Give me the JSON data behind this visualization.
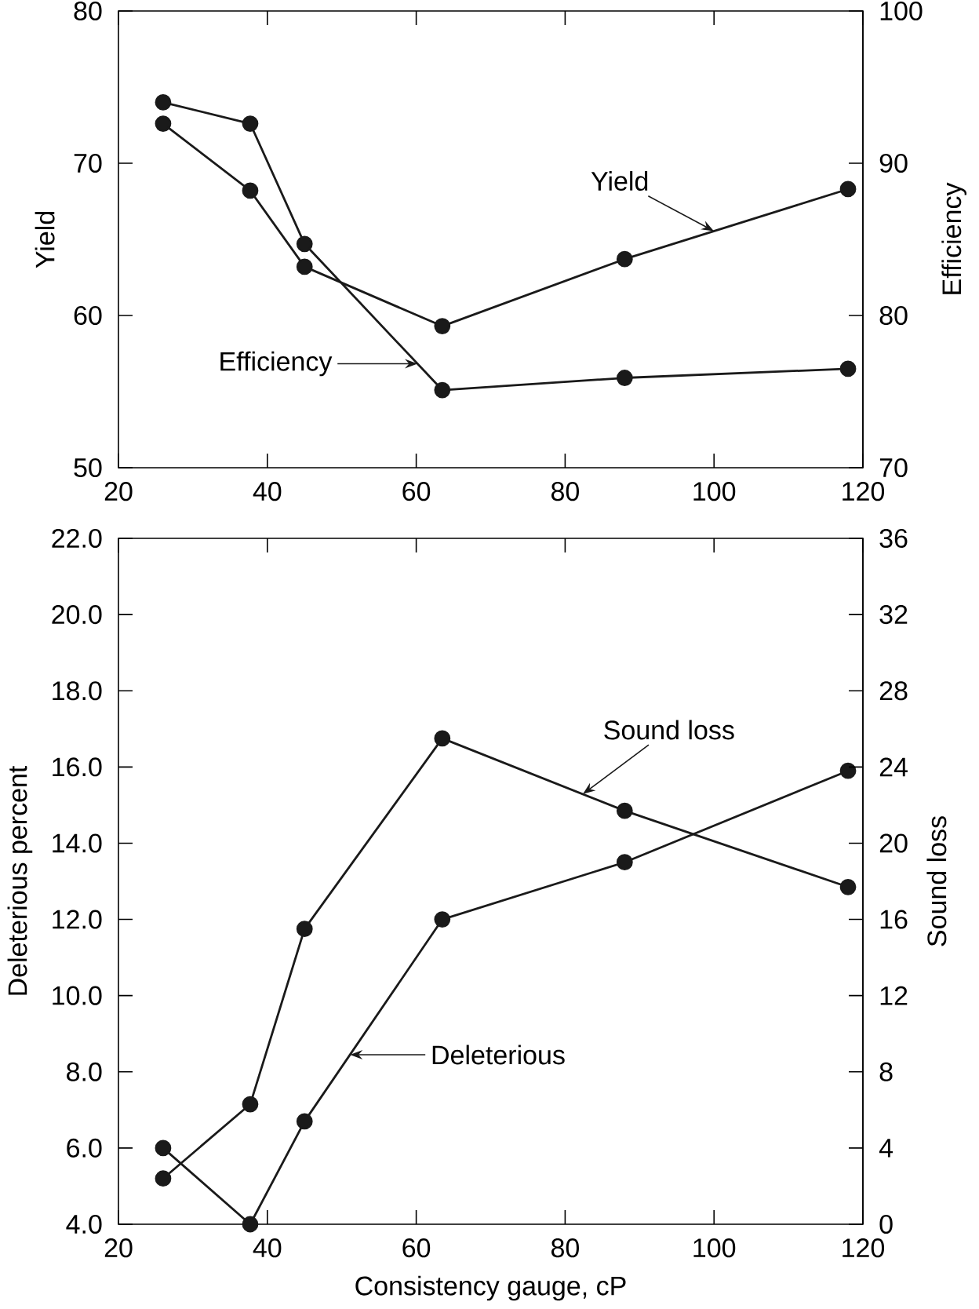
{
  "chart_data": [
    {
      "type": "line",
      "ylabel": "Yield",
      "y2label": "Efficiency",
      "x": [
        26,
        37.7,
        45,
        63.5,
        88,
        118
      ],
      "xlim": [
        20,
        120
      ],
      "xticks": [
        20,
        40,
        60,
        80,
        100,
        120
      ],
      "ylim": [
        50,
        80
      ],
      "yticks": [
        50,
        60,
        70,
        80
      ],
      "y2lim": [
        70,
        100
      ],
      "y2ticks": [
        70,
        80,
        90,
        100
      ],
      "marker": "circle",
      "line_style": "solid",
      "grid": false,
      "series": [
        {
          "name": "Yield",
          "color": "#1a1a1a",
          "values": [
            72.6,
            68.2,
            63.2,
            59.3,
            63.7,
            68.3
          ]
        },
        {
          "name": "Efficiency",
          "color": "#1a1a1a",
          "axis": "y2",
          "values": [
            94.0,
            92.6,
            84.7,
            75.1,
            75.9,
            76.5
          ]
        }
      ]
    },
    {
      "type": "line",
      "xlabel": "Consistency gauge, cP",
      "ylabel": "Deleterious percent",
      "y2label": "Sound loss",
      "x": [
        26,
        37.7,
        45,
        63.5,
        88,
        118
      ],
      "xlim": [
        20,
        120
      ],
      "xticks": [
        20,
        40,
        60,
        80,
        100,
        120
      ],
      "ylim": [
        4,
        22
      ],
      "yticks": [
        {
          "value": 4,
          "label": "4.0"
        },
        {
          "value": 6,
          "label": "6.0"
        },
        {
          "value": 8,
          "label": "8.0"
        },
        {
          "value": 10,
          "label": "10.0"
        },
        {
          "value": 12,
          "label": "12.0"
        },
        {
          "value": 14,
          "label": "14.0"
        },
        {
          "value": 16,
          "label": "16.0"
        },
        {
          "value": 18,
          "label": "18.0"
        },
        {
          "value": 20,
          "label": "20.0"
        },
        {
          "value": 22,
          "label": "22.0"
        }
      ],
      "y2lim": [
        0,
        36
      ],
      "y2ticks": [
        0,
        4,
        8,
        12,
        16,
        20,
        24,
        28,
        32,
        36
      ],
      "marker": "circle",
      "line_style": "solid",
      "grid": false,
      "series": [
        {
          "name": "Deleterious",
          "color": "#1a1a1a",
          "values": [
            6.0,
            4.0,
            6.7,
            12.0,
            13.5,
            15.9
          ]
        },
        {
          "name": "Sound loss",
          "color": "#1a1a1a",
          "axis": "y2",
          "values": [
            2.4,
            6.3,
            15.5,
            25.5,
            21.7,
            17.7
          ]
        }
      ]
    }
  ]
}
